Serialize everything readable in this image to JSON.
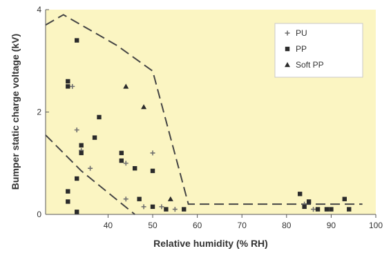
{
  "chart_data": {
    "type": "scatter",
    "title": "",
    "xlabel": "Relative humidity (% RH)",
    "ylabel": "Bumper static charge voltage (kV)",
    "xlim": [
      26,
      100
    ],
    "ylim": [
      0,
      4
    ],
    "x_ticks": [
      "40",
      "50",
      "60",
      "70",
      "80",
      "90",
      "100"
    ],
    "x_tick_values": [
      40,
      50,
      60,
      70,
      80,
      90,
      100
    ],
    "y_ticks": [
      "0",
      "2",
      "4"
    ],
    "y_tick_values": [
      0,
      2,
      4
    ],
    "grid": false,
    "legend_position": "top-right",
    "background_color": "#fbf5c2",
    "series": [
      {
        "name": "PU",
        "marker": "plus",
        "color": "#6e6e6e",
        "points": [
          [
            32,
            2.5
          ],
          [
            33,
            1.65
          ],
          [
            34,
            1.25
          ],
          [
            36,
            0.9
          ],
          [
            44,
            1.0
          ],
          [
            44,
            0.3
          ],
          [
            48,
            0.15
          ],
          [
            50,
            1.2
          ],
          [
            52,
            0.15
          ],
          [
            55,
            0.1
          ],
          [
            84,
            0.2
          ],
          [
            86,
            0.1
          ]
        ]
      },
      {
        "name": "PP",
        "marker": "square",
        "color": "#2b2b2b",
        "points": [
          [
            33,
            3.4
          ],
          [
            31,
            2.6
          ],
          [
            31,
            2.5
          ],
          [
            38,
            1.9
          ],
          [
            37,
            1.5
          ],
          [
            34,
            1.35
          ],
          [
            34,
            1.2
          ],
          [
            43,
            1.2
          ],
          [
            43,
            1.05
          ],
          [
            46,
            0.9
          ],
          [
            50,
            0.85
          ],
          [
            33,
            0.7
          ],
          [
            31,
            0.45
          ],
          [
            31,
            0.25
          ],
          [
            33,
            0.05
          ],
          [
            47,
            0.3
          ],
          [
            50,
            0.15
          ],
          [
            53,
            0.1
          ],
          [
            57,
            0.1
          ],
          [
            83,
            0.4
          ],
          [
            84,
            0.15
          ],
          [
            85,
            0.25
          ],
          [
            87,
            0.1
          ],
          [
            89,
            0.1
          ],
          [
            90,
            0.1
          ],
          [
            93,
            0.3
          ],
          [
            94,
            0.1
          ]
        ]
      },
      {
        "name": "Soft PP",
        "marker": "triangle",
        "color": "#2b2b2b",
        "points": [
          [
            44,
            2.5
          ],
          [
            48,
            2.1
          ],
          [
            54,
            0.3
          ]
        ]
      }
    ],
    "envelopes": [
      {
        "style": "dashed",
        "points": [
          [
            26,
            3.7
          ],
          [
            30,
            3.9
          ],
          [
            42,
            3.3
          ],
          [
            50,
            2.8
          ],
          [
            58,
            0.2
          ],
          [
            97,
            0.2
          ]
        ]
      },
      {
        "style": "dashed",
        "points": [
          [
            26,
            1.55
          ],
          [
            34,
            0.85
          ],
          [
            46,
            0.0
          ]
        ]
      }
    ]
  }
}
